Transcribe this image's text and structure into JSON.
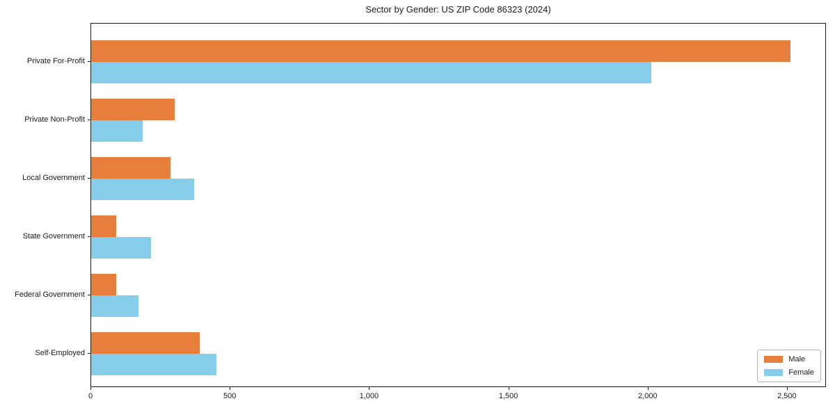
{
  "figure": {
    "title": "Sector by Gender: US ZIP Code 86323 (2024)"
  },
  "legend": {
    "position": "lower-right",
    "items": [
      {
        "label": "Male",
        "color": "#E87E3C"
      },
      {
        "label": "Female",
        "color": "#87CEEB"
      }
    ]
  },
  "chart_data": {
    "type": "bar",
    "orientation": "horizontal",
    "title": "Sector by Gender: US ZIP Code 86323 (2024)",
    "categories": [
      "Private For-Profit",
      "Private Non-Profit",
      "Local Government",
      "State Government",
      "Federal Government",
      "Self-Employed"
    ],
    "series": [
      {
        "name": "Male",
        "color": "#E87E3C",
        "values": [
          2510,
          300,
          285,
          90,
          90,
          390
        ]
      },
      {
        "name": "Female",
        "color": "#87CEEB",
        "values": [
          2010,
          185,
          370,
          215,
          170,
          450
        ]
      }
    ],
    "xlabel": "",
    "ylabel": "",
    "xlim": [
      0,
      2640
    ],
    "xticks": {
      "values": [
        0,
        500,
        1000,
        1500,
        2000,
        2500
      ],
      "labels": [
        "0",
        "500",
        "1,000",
        "1,500",
        "2,000",
        "2,500"
      ]
    },
    "grid": false,
    "legend_position": "lower right"
  }
}
